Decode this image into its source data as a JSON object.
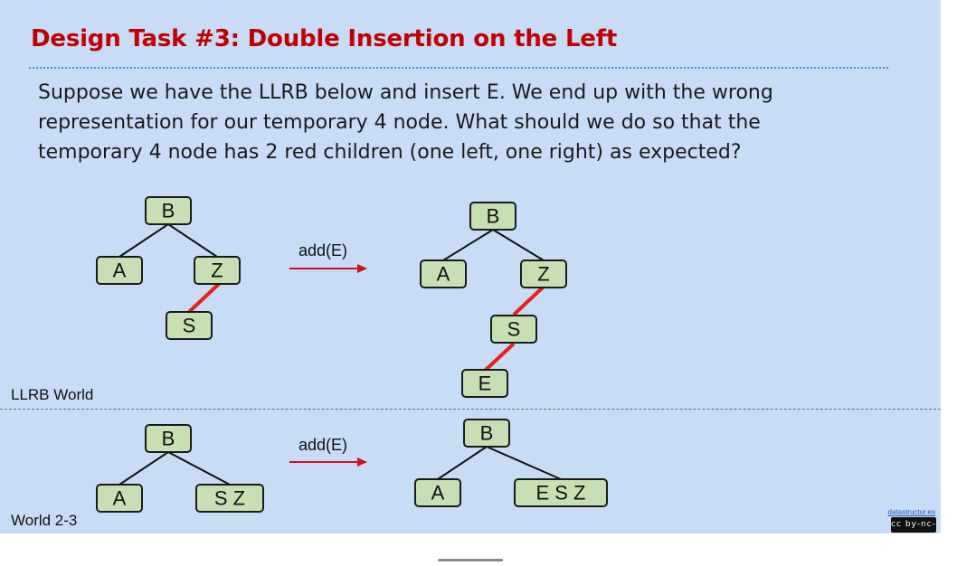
{
  "slide": {
    "title": "Design Task #3: Double Insertion on the Left",
    "body": "Suppose we have the LLRB below and insert E. We end up with the wrong representation for our temporary 4 node. What should we do so that the temporary 4 node has 2 red children (one left, one right) as expected?",
    "worlds": {
      "llrb_label": "LLRB World",
      "two_three_label": "World 2-3"
    },
    "operations": {
      "llrb_op": "add(E)",
      "two_three_op": "add(E)"
    },
    "trees": {
      "llrb_before": {
        "root": "B",
        "left": "A",
        "right": "Z",
        "red_child": "S"
      },
      "llrb_after": {
        "root": "B",
        "left": "A",
        "right": "Z",
        "red_child": "S",
        "red_grandchild": "E"
      },
      "two_three_before": {
        "root": "B",
        "left": "A",
        "right": "S Z"
      },
      "two_three_after": {
        "root": "B",
        "left": "A",
        "right": "E S Z"
      }
    },
    "colors": {
      "title": "#c00000",
      "background": "#c9dcf5",
      "node_fill": "#c6e0b4",
      "red_link": "#e8201a"
    },
    "footer": {
      "credit_link": "datastructur.es",
      "license_badge": "cc-by-nc-sa-icon"
    }
  }
}
